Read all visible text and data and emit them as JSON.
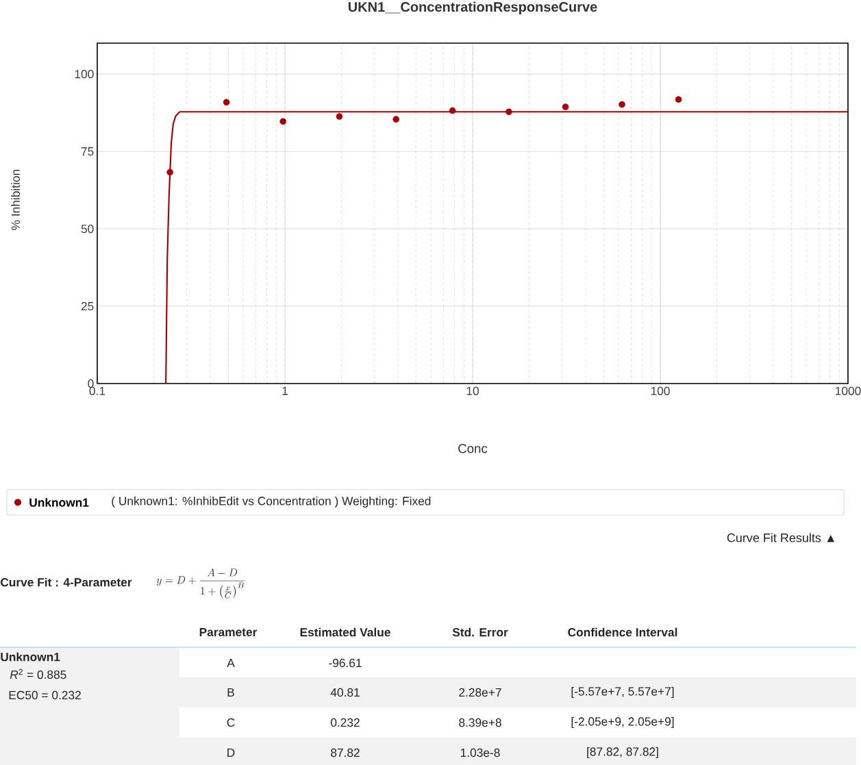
{
  "chart_data": {
    "type": "scatter",
    "title": "UKN1__ConcentrationResponseCurve",
    "xlabel": "Conc",
    "ylabel": "% Inhibition",
    "log": "x",
    "xlim": [
      0.1,
      1000
    ],
    "xticks": [
      0.1,
      1,
      10,
      100,
      1000
    ],
    "ylim": [
      0,
      110
    ],
    "yticks": [
      0,
      25,
      50,
      75,
      100
    ],
    "grid": true,
    "legend": "bottom",
    "marker": "circle",
    "series": [
      {
        "name": "Unknown1",
        "color": "#a50000",
        "x": [
          0.244,
          0.488,
          0.977,
          1.95,
          3.91,
          7.81,
          15.6,
          31.25,
          62.5,
          125
        ],
        "values": [
          68.3,
          90.9,
          84.7,
          86.3,
          85.4,
          88.2,
          87.8,
          89.4,
          90.2,
          91.8
        ]
      },
      {
        "type": "line",
        "color": "#a50000",
        "line_style": "solid",
        "marker": "none",
        "x": [
          0.232,
          0.236,
          0.241,
          0.244,
          0.248,
          0.254,
          0.262,
          0.275,
          1000
        ],
        "values": [
          0,
          40,
          60,
          68,
          78,
          84,
          86.5,
          87.8,
          87.8
        ]
      }
    ],
    "annotations": [
      "( Unknown1: %InhibEdit vs Concentration )  Weighting: Fixed",
      "Curve Fit Results ▲",
      "Curve Fit : 4-Parameter",
      "y = D + \\frac{A - D}{1 + \\left(\\frac{x}{C}\\right)^{B}}",
      "Parameter",
      "Estimated Value",
      "Std. Error",
      "Confidence Interval",
      "Unknown1",
      "*R*$^{2}$ = 0.885",
      "EC50 = 0.232",
      "A",
      "-96.61",
      "B",
      "40.81",
      "2.28e+7",
      "[-5.57e+7, 5.57e+7]",
      "C",
      "0.232",
      "8.39e+8",
      "[-2.05e+9, 2.05e+9]",
      "D",
      "87.82",
      "1.03e-8",
      "[87.82, 87.82]"
    ]
  }
}
